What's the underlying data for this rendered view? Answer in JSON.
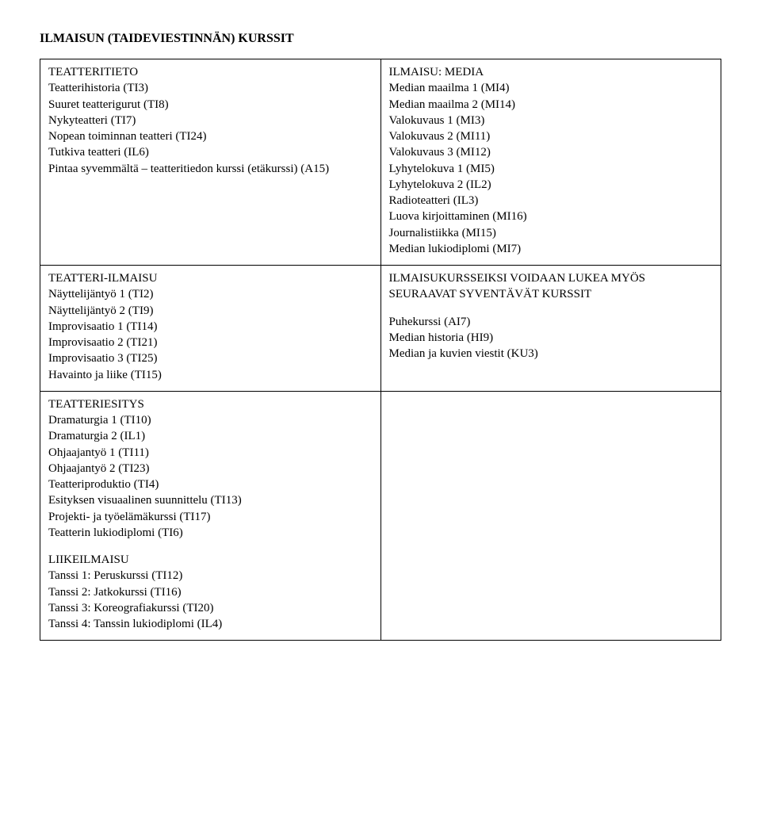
{
  "title": "ILMAISUN (TAIDEVIESTINNÄN) KURSSIT",
  "cells": {
    "r1c1": {
      "heading": "TEATTERITIETO",
      "items": [
        "Teatterihistoria (TI3)",
        "Suuret teatterigurut (TI8)",
        "Nykyteatteri (TI7)",
        "Nopean toiminnan teatteri (TI24)",
        "Tutkiva teatteri (IL6)",
        "Pintaa syvemmältä – teatteritiedon kurssi (etäkurssi) (A15)"
      ]
    },
    "r1c2": {
      "heading": "ILMAISU: MEDIA",
      "items": [
        "Median maailma 1 (MI4)",
        "Median maailma 2 (MI14)",
        "Valokuvaus 1 (MI3)",
        "Valokuvaus 2 (MI11)",
        "Valokuvaus 3 (MI12)",
        "Lyhytelokuva 1 (MI5)",
        "Lyhytelokuva 2 (IL2)",
        "Radioteatteri (IL3)",
        "Luova kirjoittaminen (MI16)",
        "Journalistiikka (MI15)",
        "Median lukiodiplomi (MI7)"
      ]
    },
    "r2c1": {
      "heading": "TEATTERI-ILMAISU",
      "items": [
        "Näyttelijäntyö 1 (TI2)",
        "Näyttelijäntyö 2 (TI9)",
        "Improvisaatio 1 (TI14)",
        "Improvisaatio 2 (TI21)",
        "Improvisaatio 3 (TI25)",
        "Havainto ja liike (TI15)"
      ]
    },
    "r2c2": {
      "heading": "ILMAISUKURSSEIKSI VOIDAAN LUKEA MYÖS SEURAAVAT SYVENTÄVÄT KURSSIT",
      "items": [
        "Puhekurssi (AI7)",
        "Median historia (HI9)",
        "Median ja kuvien viestit (KU3)"
      ],
      "gap_before_items": true
    },
    "r3c1_a": {
      "heading": "TEATTERIESITYS",
      "items": [
        "Dramaturgia 1 (TI10)",
        "Dramaturgia 2 (IL1)",
        "Ohjaajantyö 1 (TI11)",
        "Ohjaajantyö 2 (TI23)",
        "Teatteriproduktio (TI4)",
        "Esityksen visuaalinen suunnittelu (TI13)",
        "Projekti- ja työelämäkurssi (TI17)",
        "Teatterin lukiodiplomi (TI6)"
      ]
    },
    "r3c1_b": {
      "heading": "LIIKEILMAISU",
      "items": [
        "Tanssi 1: Peruskurssi (TI12)",
        "Tanssi 2: Jatkokurssi (TI16)",
        "Tanssi 3: Koreografiakurssi (TI20)",
        "Tanssi 4: Tanssin lukiodiplomi (IL4)"
      ]
    }
  }
}
